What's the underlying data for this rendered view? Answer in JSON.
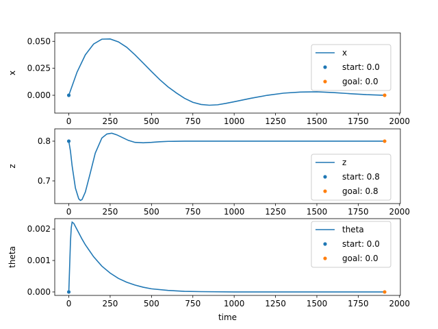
{
  "figure": {
    "xlabel": "time"
  },
  "colors": {
    "line": "#1f77b4",
    "start": "#1f77b4",
    "goal": "#ff7f0e"
  },
  "chart_data": [
    {
      "type": "line",
      "title": "",
      "xlabel": "",
      "ylabel": "x",
      "xlim": [
        -85,
        2005
      ],
      "ylim": [
        -0.0165,
        0.0578
      ],
      "x_ticks": [
        0,
        250,
        500,
        750,
        1000,
        1250,
        1500,
        1750,
        2000
      ],
      "x_tick_labels": [
        "0",
        "250",
        "500",
        "750",
        "1000",
        "1250",
        "1500",
        "1750",
        "2000"
      ],
      "y_ticks": [
        0.0,
        0.025,
        0.05
      ],
      "y_tick_labels": [
        "0.000",
        "0.025",
        "0.050"
      ],
      "series": [
        {
          "name": "x",
          "x": [
            0,
            50,
            100,
            150,
            200,
            250,
            300,
            350,
            400,
            450,
            500,
            550,
            600,
            650,
            700,
            750,
            800,
            850,
            900,
            950,
            1000,
            1100,
            1200,
            1300,
            1400,
            1500,
            1600,
            1700,
            1800,
            1910
          ],
          "y": [
            0.0,
            0.0215,
            0.0375,
            0.0475,
            0.052,
            0.0522,
            0.0495,
            0.0445,
            0.0375,
            0.0298,
            0.022,
            0.0145,
            0.0078,
            0.0022,
            -0.0028,
            -0.0065,
            -0.0085,
            -0.0092,
            -0.0088,
            -0.0075,
            -0.006,
            -0.0028,
            0.0,
            0.002,
            0.003,
            0.0032,
            0.0025,
            0.0015,
            0.0006,
            0.0
          ]
        }
      ],
      "markers": [
        {
          "name": "start: 0.0",
          "x": 0,
          "y": 0.0,
          "color": "#1f77b4"
        },
        {
          "name": "goal: 0.0",
          "x": 1910,
          "y": 0.0,
          "color": "#ff7f0e"
        }
      ],
      "legend": "top-right",
      "legend_entries": [
        "x",
        "start: 0.0",
        "goal: 0.0"
      ],
      "grid": false
    },
    {
      "type": "line",
      "title": "",
      "xlabel": "",
      "ylabel": "z",
      "xlim": [
        -85,
        2005
      ],
      "ylim": [
        0.643,
        0.831
      ],
      "x_ticks": [
        0,
        250,
        500,
        750,
        1000,
        1250,
        1500,
        1750,
        2000
      ],
      "x_tick_labels": [
        "0",
        "250",
        "500",
        "750",
        "1000",
        "1250",
        "1500",
        "1750",
        "2000"
      ],
      "y_ticks": [
        0.7,
        0.8
      ],
      "y_tick_labels": [
        "0.7",
        "0.8"
      ],
      "series": [
        {
          "name": "z",
          "x": [
            0,
            10,
            20,
            40,
            60,
            70,
            80,
            100,
            130,
            160,
            200,
            230,
            260,
            290,
            320,
            360,
            400,
            450,
            500,
            550,
            600,
            700,
            800,
            1000,
            1200,
            1400,
            1600,
            1800,
            1910
          ],
          "y": [
            0.8,
            0.775,
            0.738,
            0.682,
            0.655,
            0.651,
            0.653,
            0.672,
            0.72,
            0.77,
            0.808,
            0.818,
            0.82,
            0.816,
            0.81,
            0.802,
            0.797,
            0.796,
            0.797,
            0.7985,
            0.7995,
            0.8,
            0.8,
            0.8,
            0.8,
            0.8,
            0.8,
            0.8,
            0.8
          ]
        }
      ],
      "markers": [
        {
          "name": "start: 0.8",
          "x": 0,
          "y": 0.8,
          "color": "#1f77b4"
        },
        {
          "name": "goal: 0.8",
          "x": 1910,
          "y": 0.8,
          "color": "#ff7f0e"
        }
      ],
      "legend": "lower-right",
      "legend_entries": [
        "z",
        "start: 0.8",
        "goal: 0.8"
      ],
      "grid": false
    },
    {
      "type": "line",
      "title": "",
      "xlabel": "time",
      "ylabel": "theta",
      "xlim": [
        -85,
        2005
      ],
      "ylim": [
        -0.00011,
        0.00233
      ],
      "x_ticks": [
        0,
        250,
        500,
        750,
        1000,
        1250,
        1500,
        1750,
        2000
      ],
      "x_tick_labels": [
        "0",
        "250",
        "500",
        "750",
        "1000",
        "1250",
        "1500",
        "1750",
        "2000"
      ],
      "y_ticks": [
        0.0,
        0.001,
        0.002
      ],
      "y_tick_labels": [
        "0.000",
        "0.001",
        "0.002"
      ],
      "series": [
        {
          "name": "theta",
          "x": [
            0,
            5,
            10,
            15,
            20,
            30,
            40,
            60,
            80,
            100,
            150,
            200,
            250,
            300,
            350,
            400,
            450,
            500,
            600,
            700,
            800,
            1000,
            1200,
            1500,
            1910
          ],
          "y": [
            0.0,
            0.0008,
            0.0016,
            0.00205,
            0.00222,
            0.00218,
            0.00208,
            0.00188,
            0.00168,
            0.0015,
            0.00112,
            0.00082,
            0.0006,
            0.00043,
            0.00031,
            0.00022,
            0.00015,
            0.0001,
            5e-05,
            2e-05,
            1e-05,
            0.0,
            0.0,
            0.0,
            0.0
          ]
        }
      ],
      "markers": [
        {
          "name": "start: 0.0",
          "x": 0,
          "y": 0.0,
          "color": "#1f77b4"
        },
        {
          "name": "goal: 0.0",
          "x": 1910,
          "y": 0.0,
          "color": "#ff7f0e"
        }
      ],
      "legend": "top-right",
      "legend_entries": [
        "theta",
        "start: 0.0",
        "goal: 0.0"
      ],
      "grid": false
    }
  ]
}
